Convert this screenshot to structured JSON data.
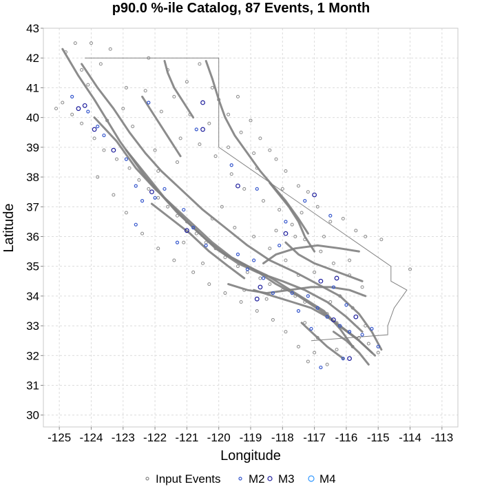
{
  "chart_data": {
    "type": "scatter",
    "title": "p90.0 %-ile Catalog, 87 Events, 1 Month",
    "xlabel": "Longitude",
    "ylabel": "Latitude",
    "xlim": [
      -125.5,
      -112.5
    ],
    "ylim": [
      29.6,
      43
    ],
    "x_ticks": [
      "-125",
      "-124",
      "-123",
      "-122",
      "-121",
      "-120",
      "-119",
      "-118",
      "-117",
      "-116",
      "-115",
      "-114",
      "-113"
    ],
    "y_ticks": [
      "30",
      "31",
      "32",
      "33",
      "34",
      "35",
      "36",
      "37",
      "38",
      "39",
      "40",
      "41",
      "42",
      "43"
    ],
    "grid": true,
    "legend_position": "bottom",
    "colors": {
      "input_events": "#888888",
      "faults": "#808080",
      "boundary": "#808080",
      "M2": "#3355cc",
      "M3": "#1a1a9a",
      "M4": "#3399ff"
    },
    "legend": [
      {
        "label": "Input Events",
        "color": "#888888",
        "r": 2
      },
      {
        "label": "M2",
        "color": "#3355cc",
        "r": 2
      },
      {
        "label": "M3",
        "color": "#1a1a9a",
        "r": 3
      },
      {
        "label": "M4",
        "color": "#3399ff",
        "r": 4
      }
    ],
    "series": [
      {
        "name": "M2",
        "points": [
          [
            -124.6,
            40.7
          ],
          [
            -124.1,
            40.2
          ],
          [
            -123.6,
            39.4
          ],
          [
            -122.9,
            38.6
          ],
          [
            -122.6,
            37.7
          ],
          [
            -122.4,
            37.2
          ],
          [
            -122.0,
            37.3
          ],
          [
            -121.7,
            37.6
          ],
          [
            -121.1,
            36.9
          ],
          [
            -120.8,
            36.3
          ],
          [
            -120.4,
            35.7
          ],
          [
            -121.3,
            35.8
          ],
          [
            -122.6,
            36.4
          ],
          [
            -119.6,
            38.4
          ],
          [
            -118.8,
            37.6
          ],
          [
            -117.9,
            36.5
          ],
          [
            -117.3,
            37.2
          ],
          [
            -116.5,
            36.7
          ],
          [
            -118.9,
            35.2
          ],
          [
            -118.6,
            34.6
          ],
          [
            -118.3,
            34.1
          ],
          [
            -117.7,
            34.1
          ],
          [
            -117.2,
            34.0
          ],
          [
            -116.9,
            33.6
          ],
          [
            -116.6,
            33.3
          ],
          [
            -116.2,
            33.0
          ],
          [
            -115.9,
            32.8
          ],
          [
            -115.5,
            32.7
          ],
          [
            -115.2,
            32.9
          ],
          [
            -115.0,
            32.3
          ],
          [
            -116.1,
            31.9
          ],
          [
            -116.8,
            31.6
          ],
          [
            -117.1,
            32.9
          ],
          [
            -116.4,
            34.3
          ],
          [
            -119.1,
            34.9
          ],
          [
            -119.4,
            35.4
          ],
          [
            -120.7,
            39.6
          ],
          [
            -122.2,
            40.5
          ],
          [
            -123.8,
            39.7
          ],
          [
            -118.1,
            35.7
          ],
          [
            -117.5,
            33.5
          ],
          [
            -116.0,
            33.7
          ]
        ]
      },
      {
        "name": "M3",
        "points": [
          [
            -124.2,
            40.4
          ],
          [
            -124.4,
            40.3
          ],
          [
            -123.9,
            39.6
          ],
          [
            -123.3,
            38.9
          ],
          [
            -122.1,
            37.5
          ],
          [
            -121.0,
            36.2
          ],
          [
            -119.4,
            37.7
          ],
          [
            -118.7,
            34.3
          ],
          [
            -118.8,
            33.9
          ],
          [
            -116.3,
            34.6
          ],
          [
            -120.5,
            39.6
          ],
          [
            -120.5,
            40.5
          ],
          [
            -117.0,
            37.4
          ],
          [
            -117.9,
            36.1
          ],
          [
            -116.4,
            33.2
          ],
          [
            -115.9,
            31.9
          ],
          [
            -115.7,
            33.3
          ],
          [
            -116.8,
            34.5
          ]
        ]
      },
      {
        "name": "M4",
        "points": []
      }
    ],
    "input_events_points": [
      [
        -124.8,
        42.2
      ],
      [
        -124.5,
        42.5
      ],
      [
        -124.0,
        42.5
      ],
      [
        -123.4,
        42.3
      ],
      [
        -122.2,
        42.0
      ],
      [
        -121.6,
        41.6
      ],
      [
        -121.0,
        41.2
      ],
      [
        -120.6,
        41.8
      ],
      [
        -120.2,
        41.0
      ],
      [
        -120.0,
        40.6
      ],
      [
        -119.7,
        40.1
      ],
      [
        -119.4,
        40.7
      ],
      [
        -119.0,
        39.9
      ],
      [
        -118.7,
        39.3
      ],
      [
        -118.4,
        38.9
      ],
      [
        -118.2,
        38.6
      ],
      [
        -117.9,
        38.2
      ],
      [
        -117.5,
        37.7
      ],
      [
        -117.2,
        37.5
      ],
      [
        -116.9,
        37.0
      ],
      [
        -116.5,
        36.5
      ],
      [
        -116.1,
        36.6
      ],
      [
        -115.7,
        36.2
      ],
      [
        -115.4,
        36.0
      ],
      [
        -114.9,
        35.9
      ],
      [
        -114.0,
        34.9
      ],
      [
        -124.9,
        40.5
      ],
      [
        -125.1,
        40.3
      ],
      [
        -124.6,
        40.1
      ],
      [
        -124.3,
        39.8
      ],
      [
        -123.9,
        39.3
      ],
      [
        -123.6,
        38.9
      ],
      [
        -123.2,
        38.6
      ],
      [
        -122.8,
        38.3
      ],
      [
        -122.5,
        37.9
      ],
      [
        -122.2,
        37.6
      ],
      [
        -121.9,
        37.3
      ],
      [
        -121.6,
        37.0
      ],
      [
        -121.3,
        36.7
      ],
      [
        -121.0,
        36.5
      ],
      [
        -120.7,
        36.1
      ],
      [
        -120.4,
        35.8
      ],
      [
        -120.1,
        35.6
      ],
      [
        -119.8,
        35.3
      ],
      [
        -119.4,
        35.0
      ],
      [
        -119.1,
        34.8
      ],
      [
        -118.7,
        34.6
      ],
      [
        -118.4,
        34.4
      ],
      [
        -118.0,
        34.2
      ],
      [
        -117.6,
        34.0
      ],
      [
        -117.3,
        33.8
      ],
      [
        -116.9,
        33.6
      ],
      [
        -116.6,
        33.4
      ],
      [
        -116.3,
        33.1
      ],
      [
        -115.9,
        32.8
      ],
      [
        -115.6,
        32.6
      ],
      [
        -115.3,
        32.4
      ],
      [
        -115.0,
        32.1
      ],
      [
        -116.6,
        31.7
      ],
      [
        -117.2,
        31.8
      ],
      [
        -117.5,
        32.3
      ],
      [
        -117.9,
        32.8
      ],
      [
        -118.3,
        33.2
      ],
      [
        -118.8,
        33.5
      ],
      [
        -119.3,
        33.8
      ],
      [
        -119.8,
        34.1
      ],
      [
        -120.3,
        34.4
      ],
      [
        -120.8,
        34.8
      ],
      [
        -121.4,
        35.2
      ],
      [
        -121.9,
        35.6
      ],
      [
        -122.4,
        36.1
      ],
      [
        -122.9,
        36.8
      ],
      [
        -123.3,
        37.4
      ],
      [
        -123.8,
        38.0
      ],
      [
        -122.0,
        38.9
      ],
      [
        -121.2,
        39.3
      ],
      [
        -120.6,
        39.1
      ],
      [
        -120.1,
        38.7
      ],
      [
        -119.6,
        38.1
      ],
      [
        -119.2,
        37.6
      ],
      [
        -118.6,
        37.2
      ],
      [
        -118.1,
        36.9
      ],
      [
        -117.7,
        36.4
      ],
      [
        -117.3,
        35.9
      ],
      [
        -116.8,
        35.5
      ],
      [
        -116.4,
        35.1
      ],
      [
        -115.9,
        34.7
      ],
      [
        -115.5,
        34.3
      ],
      [
        -122.7,
        39.7
      ],
      [
        -121.8,
        40.2
      ],
      [
        -121.4,
        40.7
      ],
      [
        -120.9,
        40.1
      ],
      [
        -122.3,
        40.9
      ],
      [
        -123.0,
        40.3
      ],
      [
        -119.9,
        37.0
      ],
      [
        -120.2,
        36.6
      ],
      [
        -119.5,
        36.3
      ],
      [
        -118.9,
        36.0
      ],
      [
        -118.4,
        35.6
      ],
      [
        -117.9,
        35.2
      ],
      [
        -117.5,
        34.7
      ],
      [
        -118.2,
        36.2
      ],
      [
        -117.6,
        36.0
      ],
      [
        -116.2,
        34.0
      ],
      [
        -115.8,
        33.6
      ],
      [
        -116.9,
        32.6
      ],
      [
        -117.3,
        33.1
      ],
      [
        -118.5,
        33.9
      ],
      [
        -119.2,
        34.2
      ],
      [
        -120.5,
        35.1
      ],
      [
        -121.1,
        35.8
      ],
      [
        -119.7,
        39.0
      ],
      [
        -119.3,
        39.5
      ],
      [
        -118.8,
        38.3
      ],
      [
        -118.0,
        37.6
      ],
      [
        -121.3,
        38.5
      ],
      [
        -121.9,
        38.2
      ],
      [
        -123.5,
        39.9
      ],
      [
        -124.1,
        41.1
      ],
      [
        -123.7,
        41.8
      ],
      [
        -124.3,
        41.6
      ],
      [
        -122.9,
        41.0
      ],
      [
        -120.3,
        39.8
      ],
      [
        -118.9,
        38.8
      ],
      [
        -117.4,
        36.8
      ],
      [
        -116.7,
        36.0
      ],
      [
        -115.9,
        35.2
      ],
      [
        -117.0,
        34.8
      ],
      [
        -116.5,
        33.8
      ],
      [
        -115.4,
        33.0
      ],
      [
        -115.8,
        32.3
      ],
      [
        -116.3,
        32.2
      ],
      [
        -117.0,
        32.1
      ]
    ],
    "faults": [
      [
        [
          -124.9,
          42.3
        ],
        [
          -124.4,
          41.4
        ],
        [
          -123.9,
          40.6
        ],
        [
          -123.5,
          39.9
        ],
        [
          -123.1,
          39.2
        ],
        [
          -122.7,
          38.6
        ],
        [
          -122.3,
          38.0
        ],
        [
          -121.8,
          37.4
        ],
        [
          -121.3,
          36.8
        ],
        [
          -120.7,
          36.2
        ],
        [
          -120.1,
          35.6
        ],
        [
          -119.4,
          35.1
        ],
        [
          -118.8,
          34.8
        ],
        [
          -118.0,
          34.5
        ],
        [
          -117.3,
          34.2
        ],
        [
          -116.6,
          33.8
        ],
        [
          -116.0,
          33.3
        ],
        [
          -115.5,
          32.8
        ]
      ],
      [
        [
          -124.3,
          41.8
        ],
        [
          -123.8,
          41.0
        ],
        [
          -123.3,
          40.3
        ],
        [
          -122.8,
          39.5
        ],
        [
          -122.3,
          38.8
        ],
        [
          -121.8,
          38.2
        ],
        [
          -121.2,
          37.6
        ],
        [
          -120.5,
          36.9
        ],
        [
          -119.8,
          36.3
        ],
        [
          -119.1,
          35.7
        ],
        [
          -118.4,
          35.2
        ],
        [
          -117.6,
          34.8
        ],
        [
          -116.9,
          34.4
        ],
        [
          -116.2,
          34.0
        ],
        [
          -115.6,
          33.4
        ],
        [
          -115.2,
          32.8
        ],
        [
          -114.9,
          32.2
        ]
      ],
      [
        [
          -123.9,
          40.0
        ],
        [
          -123.2,
          39.2
        ],
        [
          -122.6,
          38.3
        ],
        [
          -122.0,
          37.6
        ],
        [
          -121.4,
          37.0
        ],
        [
          -120.8,
          36.4
        ],
        [
          -120.2,
          35.8
        ],
        [
          -119.6,
          35.3
        ],
        [
          -118.9,
          34.9
        ],
        [
          -118.2,
          34.4
        ],
        [
          -117.5,
          34.0
        ],
        [
          -116.8,
          33.5
        ],
        [
          -116.2,
          33.0
        ],
        [
          -115.7,
          32.6
        ],
        [
          -115.2,
          32.1
        ]
      ],
      [
        [
          -122.9,
          38.9
        ],
        [
          -122.3,
          38.1
        ],
        [
          -121.7,
          37.3
        ],
        [
          -121.0,
          36.5
        ],
        [
          -120.4,
          35.9
        ],
        [
          -119.8,
          35.4
        ],
        [
          -119.1,
          35.0
        ],
        [
          -118.5,
          34.7
        ],
        [
          -117.9,
          34.3
        ],
        [
          -117.3,
          33.9
        ],
        [
          -116.7,
          33.5
        ],
        [
          -116.2,
          32.9
        ],
        [
          -115.8,
          32.3
        ]
      ],
      [
        [
          -118.9,
          34.2
        ],
        [
          -118.3,
          34.0
        ],
        [
          -117.7,
          33.8
        ],
        [
          -117.1,
          33.6
        ],
        [
          -116.6,
          33.3
        ],
        [
          -116.1,
          32.9
        ],
        [
          -115.6,
          32.5
        ],
        [
          -115.1,
          32.0
        ]
      ],
      [
        [
          -119.7,
          34.4
        ],
        [
          -119.1,
          34.2
        ],
        [
          -118.5,
          34.1
        ],
        [
          -117.8,
          34.2
        ],
        [
          -117.1,
          34.3
        ],
        [
          -116.5,
          34.3
        ],
        [
          -115.9,
          34.2
        ],
        [
          -115.4,
          34.0
        ]
      ],
      [
        [
          -118.6,
          35.1
        ],
        [
          -118.2,
          35.4
        ],
        [
          -117.6,
          35.6
        ],
        [
          -116.9,
          35.7
        ],
        [
          -116.2,
          35.6
        ],
        [
          -115.6,
          35.5
        ]
      ],
      [
        [
          -120.4,
          41.9
        ],
        [
          -120.2,
          41.3
        ],
        [
          -120.0,
          40.6
        ],
        [
          -119.8,
          40.0
        ],
        [
          -119.5,
          39.4
        ],
        [
          -119.1,
          38.8
        ],
        [
          -118.7,
          38.2
        ],
        [
          -118.3,
          37.7
        ],
        [
          -117.9,
          37.2
        ],
        [
          -117.5,
          36.6
        ],
        [
          -117.2,
          36.1
        ]
      ],
      [
        [
          -121.7,
          41.9
        ],
        [
          -121.6,
          41.5
        ],
        [
          -121.4,
          41.0
        ],
        [
          -121.1,
          40.5
        ],
        [
          -120.8,
          40.0
        ]
      ],
      [
        [
          -122.4,
          40.7
        ],
        [
          -122.1,
          40.2
        ],
        [
          -121.8,
          39.7
        ],
        [
          -121.5,
          39.2
        ],
        [
          -121.2,
          38.7
        ]
      ],
      [
        [
          -118.4,
          37.8
        ],
        [
          -118.1,
          37.4
        ],
        [
          -117.8,
          37.0
        ],
        [
          -117.5,
          36.5
        ],
        [
          -117.3,
          36.0
        ],
        [
          -117.0,
          35.5
        ]
      ],
      [
        [
          -117.9,
          35.8
        ],
        [
          -117.5,
          35.4
        ],
        [
          -117.0,
          35.1
        ],
        [
          -116.5,
          34.9
        ],
        [
          -116.0,
          34.7
        ],
        [
          -115.5,
          34.5
        ]
      ],
      [
        [
          -122.1,
          37.1
        ],
        [
          -121.5,
          36.6
        ],
        [
          -120.9,
          36.1
        ],
        [
          -120.3,
          35.5
        ],
        [
          -119.7,
          35.0
        ],
        [
          -119.2,
          34.6
        ]
      ],
      [
        [
          -116.4,
          32.8
        ],
        [
          -116.0,
          32.5
        ],
        [
          -115.6,
          32.1
        ],
        [
          -115.3,
          31.7
        ]
      ],
      [
        [
          -117.4,
          33.1
        ],
        [
          -117.0,
          32.7
        ],
        [
          -116.6,
          32.3
        ],
        [
          -116.1,
          31.9
        ]
      ]
    ],
    "boundary": [
      [
        -124.2,
        42.0
      ],
      [
        -120.0,
        42.0
      ],
      [
        -120.0,
        39.0
      ],
      [
        -114.6,
        35.0
      ],
      [
        -114.6,
        34.5
      ],
      [
        -114.1,
        34.2
      ],
      [
        -114.5,
        33.6
      ],
      [
        -114.7,
        33.0
      ],
      [
        -114.7,
        32.7
      ],
      [
        -117.1,
        32.5
      ]
    ]
  }
}
